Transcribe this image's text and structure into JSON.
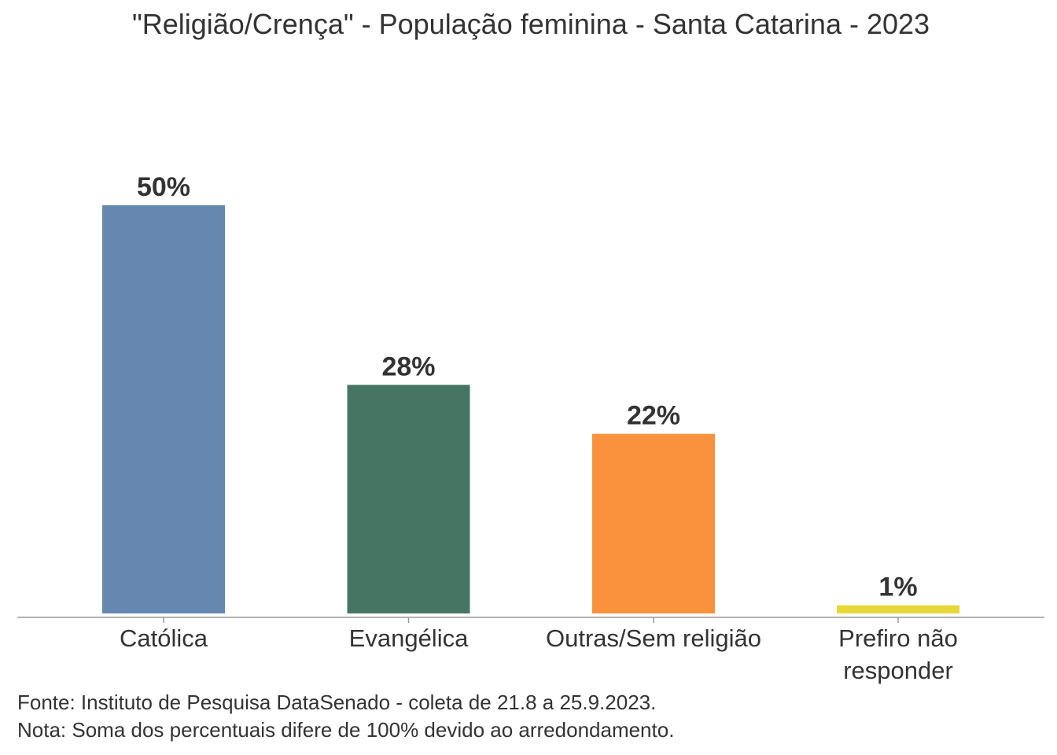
{
  "chart_data": {
    "type": "bar",
    "title": "\"Religião/Crença\" - População feminina - Santa Catarina - 2023",
    "categories": [
      [
        "Católica"
      ],
      [
        "Evangélica"
      ],
      [
        "Outras/Sem religião"
      ],
      [
        "Prefiro não",
        "responder"
      ]
    ],
    "values": [
      50,
      28,
      22,
      1
    ],
    "labels": [
      "50%",
      "28%",
      "22%",
      "1%"
    ],
    "colors": [
      "#6688B0",
      "#467563",
      "#F9913D",
      "#E6D83A"
    ],
    "xlabel": "",
    "ylabel": "",
    "ylim": [
      0,
      50
    ],
    "grid": false,
    "legend": "none"
  },
  "footer": {
    "source": "Fonte: Instituto de Pesquisa DataSenado - coleta de 21.8 a 25.9.2023.",
    "note": "Nota: Soma dos percentuais difere de 100% devido ao arredondamento."
  }
}
